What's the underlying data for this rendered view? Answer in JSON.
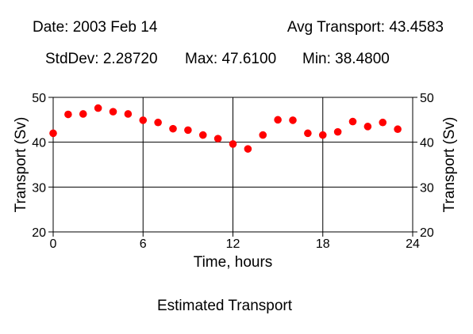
{
  "header": {
    "date": "Date: 2003 Feb 14",
    "avg": "Avg Transport: 43.4583",
    "stddev": "StdDev: 2.28720",
    "max": "Max: 47.6100",
    "min": "Min: 38.4800"
  },
  "footer": {
    "caption": "Estimated Transport"
  },
  "chart_data": {
    "type": "scatter",
    "title": "Estimated Transport",
    "xlabel": "Time, hours",
    "ylabel": "Transport (Sv)",
    "xlim": [
      0,
      24
    ],
    "ylim": [
      20,
      50
    ],
    "xticks": [
      0,
      6,
      12,
      18,
      24
    ],
    "yticks": [
      20,
      30,
      40,
      50
    ],
    "grid": true,
    "marker_color": "#ff0000",
    "series": [
      {
        "x": [
          0,
          1,
          2,
          3,
          4,
          5,
          6,
          7,
          8,
          9,
          10,
          11,
          12,
          13,
          14,
          15,
          16,
          17,
          18,
          19,
          20,
          21,
          22,
          23
        ],
        "y": [
          42.0,
          46.2,
          46.3,
          47.6,
          46.8,
          46.3,
          44.9,
          44.4,
          43.0,
          42.7,
          41.6,
          40.8,
          39.6,
          38.5,
          41.6,
          45.0,
          44.9,
          42.0,
          41.6,
          42.3,
          44.6,
          43.5,
          44.4,
          42.9
        ]
      }
    ]
  }
}
